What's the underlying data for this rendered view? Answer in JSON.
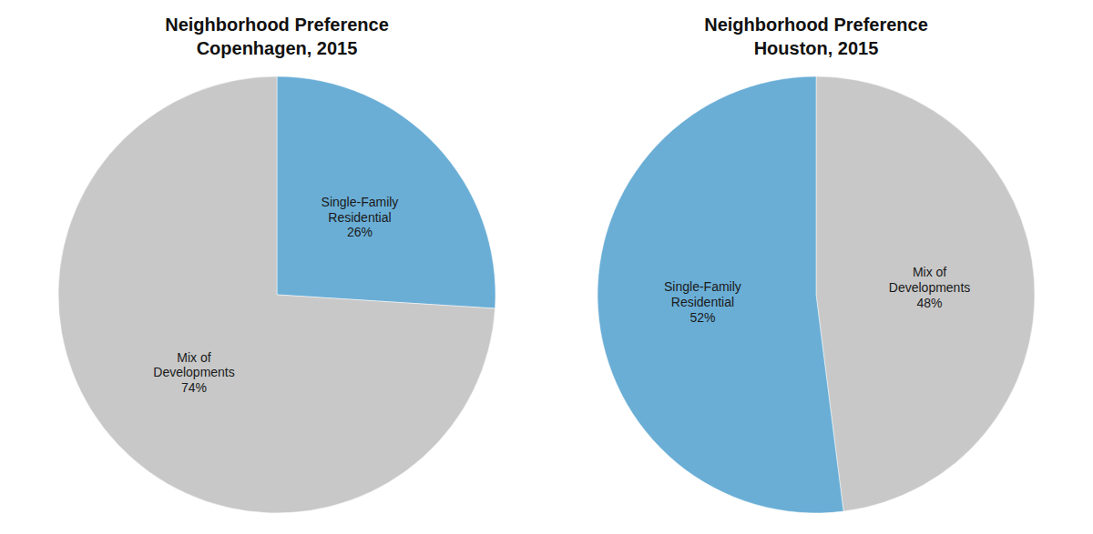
{
  "chart_data": [
    {
      "type": "pie",
      "title": "Neighborhood Preference\nCopenhagen, 2015",
      "categories": [
        "Single-Family\nResidential",
        "Mix of\nDevelopments"
      ],
      "values": [
        26,
        74
      ],
      "value_labels": [
        "26%",
        "74%"
      ],
      "data_labels": true,
      "colors": [
        "#6aaed6",
        "#c8c8c8"
      ]
    },
    {
      "type": "pie",
      "title": "Neighborhood Preference\nHouston, 2015",
      "categories": [
        "Mix of\nDevelopments",
        "Single-Family\nResidential"
      ],
      "values": [
        48,
        52
      ],
      "value_labels": [
        "48%",
        "52%"
      ],
      "data_labels": true,
      "colors": [
        "#c8c8c8",
        "#6aaed6"
      ]
    }
  ]
}
